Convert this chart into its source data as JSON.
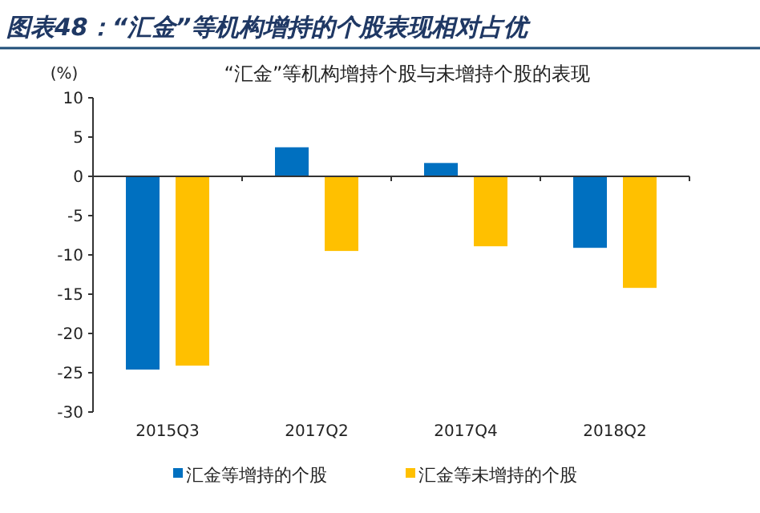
{
  "chart_data": {
    "type": "bar",
    "title": "图表48：“汇金”等机构增持的个股表现相对占优",
    "subtitle": "“汇金”等机构增持个股与未增持个股的表现",
    "ylabel": "(%)",
    "categories": [
      "2015Q3",
      "2017Q2",
      "2017Q4",
      "2018Q2"
    ],
    "series": [
      {
        "name": "汇金等增持的个股",
        "color": "#0070c0",
        "values": [
          -24.6,
          3.7,
          1.7,
          -9.1
        ]
      },
      {
        "name": "汇金等未增持的个股",
        "color": "#ffc000",
        "values": [
          -24.1,
          -9.5,
          -8.9,
          -14.2
        ]
      }
    ],
    "ylim": [
      -30,
      10
    ],
    "yticks": [
      -30,
      -25,
      -20,
      -15,
      -10,
      -5,
      0,
      5,
      10
    ],
    "legend": "bottom"
  }
}
